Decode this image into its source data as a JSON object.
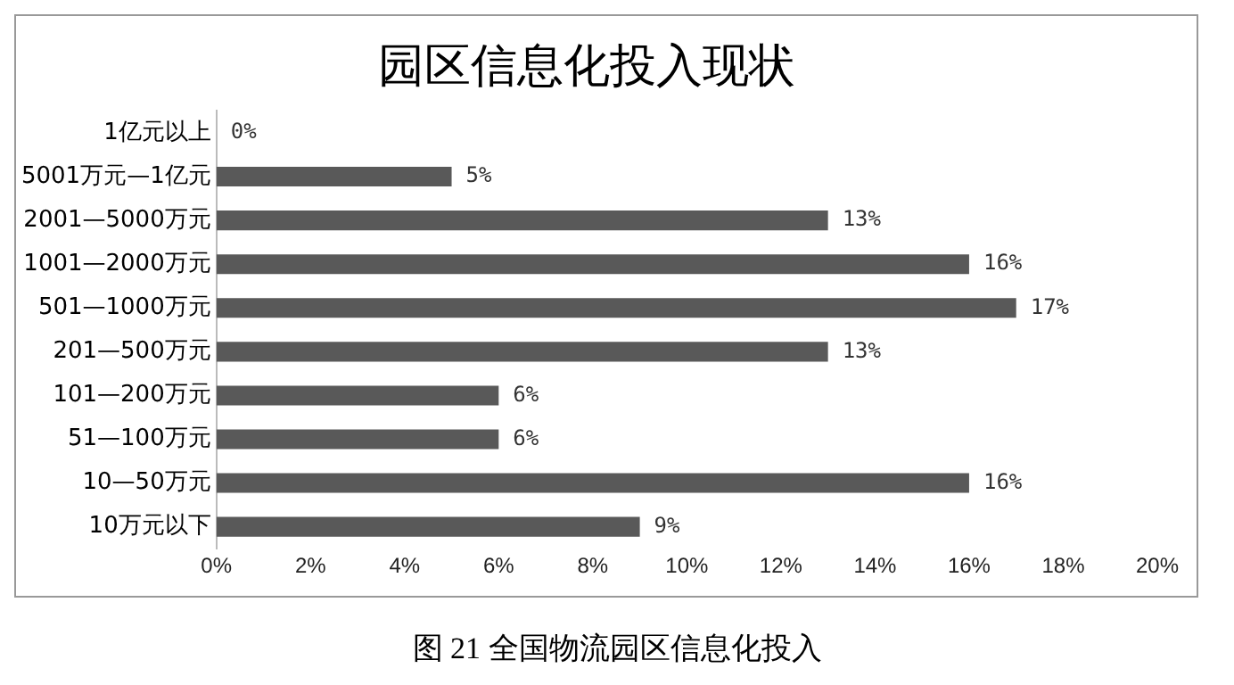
{
  "chart_data": {
    "type": "bar",
    "orientation": "horizontal",
    "title": "园区信息化投入现状",
    "categories": [
      "1亿元以上",
      "5001万元—1亿元",
      "2001—5000万元",
      "1001—2000万元",
      "501—1000万元",
      "201—500万元",
      "101—200万元",
      "51—100万元",
      "10—50万元",
      "10万元以下"
    ],
    "values": [
      0,
      5,
      13,
      16,
      17,
      13,
      6,
      6,
      16,
      9
    ],
    "value_labels": [
      "0%",
      "5%",
      "13%",
      "16%",
      "17%",
      "13%",
      "6%",
      "6%",
      "16%",
      "9%"
    ],
    "color": "#595959",
    "xlim": [
      0,
      20
    ],
    "xticks": [
      {
        "value": 0,
        "label": "0%"
      },
      {
        "value": 2,
        "label": "2%"
      },
      {
        "value": 4,
        "label": "4%"
      },
      {
        "value": 6,
        "label": "6%"
      },
      {
        "value": 8,
        "label": "8%"
      },
      {
        "value": 10,
        "label": "10%"
      },
      {
        "value": 12,
        "label": "12%"
      },
      {
        "value": 14,
        "label": "14%"
      },
      {
        "value": 16,
        "label": "16%"
      },
      {
        "value": 18,
        "label": "18%"
      },
      {
        "value": 20,
        "label": "20%"
      }
    ],
    "grid": false,
    "legend": false,
    "annotations": [
      "图 21  全国物流园区信息化投入"
    ]
  }
}
